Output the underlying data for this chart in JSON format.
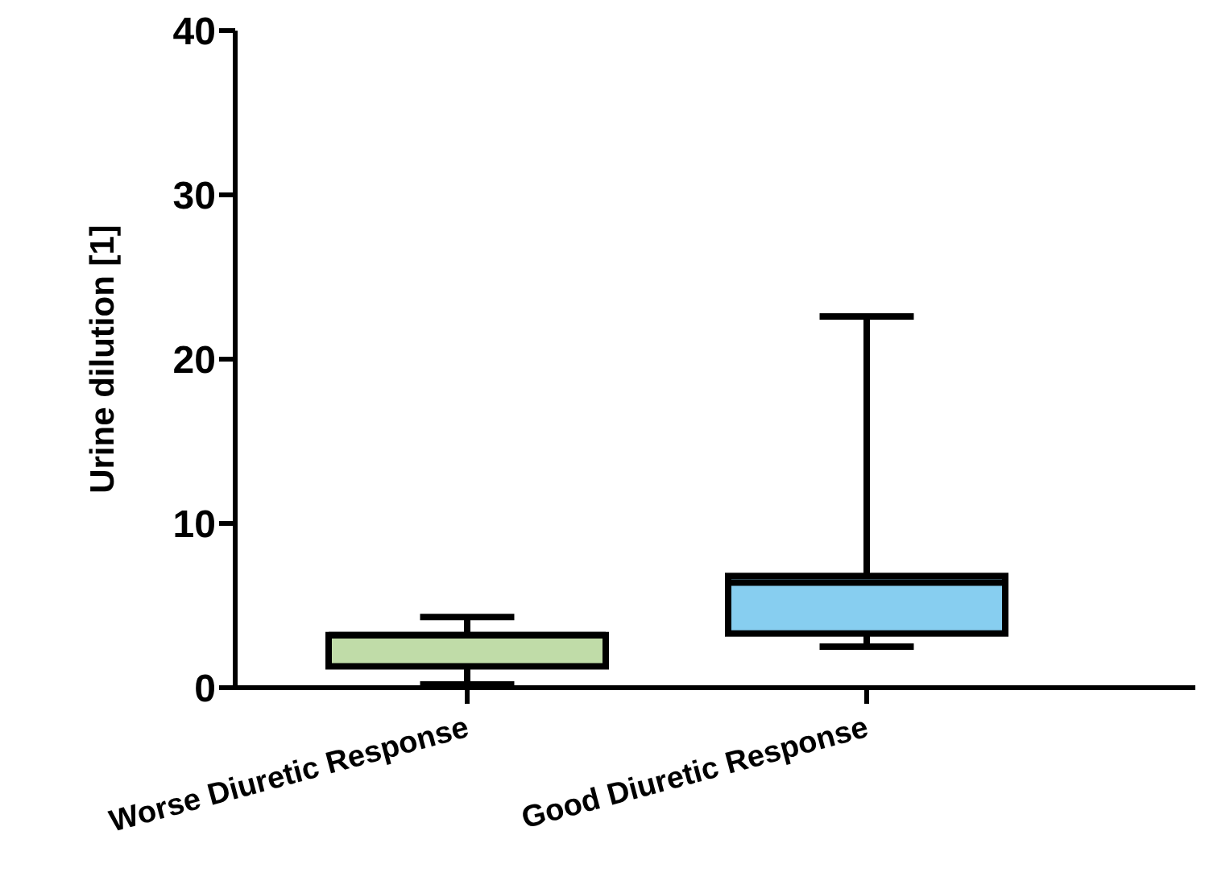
{
  "chart_data": {
    "type": "box",
    "ylabel": "Urine dilution [1]",
    "categories": [
      "Worse Diuretic Response",
      "Good Diuretic Response"
    ],
    "colors": [
      "#c0dca8",
      "#87cef0"
    ],
    "boxes": [
      {
        "low": 0.2,
        "q1": 1.3,
        "median": 3.2,
        "q3": 3.2,
        "high": 4.3
      },
      {
        "low": 2.5,
        "q1": 3.3,
        "median": 6.4,
        "q3": 6.8,
        "high": 22.6
      }
    ],
    "ylim": [
      0,
      40
    ],
    "yticks": [
      0,
      10,
      20,
      30,
      40
    ]
  }
}
